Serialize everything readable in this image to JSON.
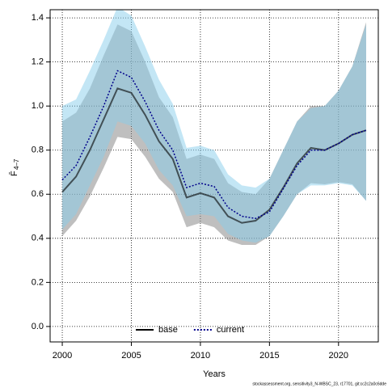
{
  "chart_data": {
    "type": "line",
    "x_label": "Years",
    "y_label": "F̄",
    "y_label_sub": "4–7",
    "footnote": "stockassessment.org, sensitivity3_N-WBSC_23, r17701, git:cc2c2a0c6dde",
    "x": [
      2000,
      2001,
      2002,
      2003,
      2004,
      2005,
      2006,
      2007,
      2008,
      2009,
      2010,
      2011,
      2012,
      2013,
      2014,
      2015,
      2016,
      2017,
      2018,
      2019,
      2020,
      2021,
      2022
    ],
    "series": [
      {
        "name": "base",
        "color": "#000000",
        "dash": false,
        "band_color": "rgba(128,128,128,0.5)",
        "values": [
          0.61,
          0.68,
          0.8,
          0.94,
          1.08,
          1.06,
          0.96,
          0.84,
          0.76,
          0.585,
          0.605,
          0.585,
          0.5,
          0.47,
          0.48,
          0.53,
          0.63,
          0.74,
          0.81,
          0.8,
          0.83,
          0.87,
          0.89
        ],
        "lower": [
          0.41,
          0.48,
          0.59,
          0.72,
          0.86,
          0.85,
          0.77,
          0.67,
          0.61,
          0.45,
          0.47,
          0.45,
          0.39,
          0.37,
          0.37,
          0.41,
          0.5,
          0.6,
          0.65,
          0.645,
          0.655,
          0.645,
          0.57
        ],
        "upper": [
          0.93,
          0.97,
          1.08,
          1.23,
          1.37,
          1.34,
          1.2,
          1.04,
          0.95,
          0.76,
          0.78,
          0.76,
          0.65,
          0.61,
          0.6,
          0.67,
          0.8,
          0.93,
          1.0,
          1.0,
          1.07,
          1.18,
          1.38
        ]
      },
      {
        "name": "current",
        "color": "#00008b",
        "dash": true,
        "band_color": "rgba(135,206,235,0.5)",
        "values": [
          0.665,
          0.73,
          0.86,
          1.0,
          1.16,
          1.13,
          1.02,
          0.89,
          0.8,
          0.63,
          0.65,
          0.635,
          0.54,
          0.5,
          0.49,
          0.52,
          0.625,
          0.73,
          0.8,
          0.8,
          0.83,
          0.87,
          0.89
        ],
        "lower": [
          0.44,
          0.51,
          0.64,
          0.77,
          0.93,
          0.91,
          0.83,
          0.71,
          0.64,
          0.5,
          0.51,
          0.5,
          0.42,
          0.39,
          0.38,
          0.41,
          0.5,
          0.6,
          0.64,
          0.64,
          0.65,
          0.64,
          0.57
        ],
        "upper": [
          1.0,
          1.03,
          1.16,
          1.3,
          1.45,
          1.41,
          1.27,
          1.12,
          1.01,
          0.81,
          0.82,
          0.8,
          0.69,
          0.64,
          0.63,
          0.67,
          0.8,
          0.93,
          0.99,
          1.0,
          1.07,
          1.18,
          1.37
        ]
      }
    ],
    "xlim": [
      1999.12,
      2022.88
    ],
    "xticks": [
      2000,
      2005,
      2010,
      2015,
      2020
    ],
    "ylim": [
      -0.07,
      1.437
    ],
    "yticks": [
      {
        "value": 0,
        "label": "0.0"
      },
      {
        "value": 0.2,
        "label": "0.2"
      },
      {
        "value": 0.4,
        "label": "0.4"
      },
      {
        "value": 0.6,
        "label": "0.6"
      },
      {
        "value": 0.8,
        "label": "0.8"
      },
      {
        "value": 1,
        "label": "1.0"
      },
      {
        "value": 1.2,
        "label": "1.2"
      },
      {
        "value": 1.4,
        "label": "1.4"
      }
    ],
    "grid": true,
    "legend": "bottom"
  }
}
